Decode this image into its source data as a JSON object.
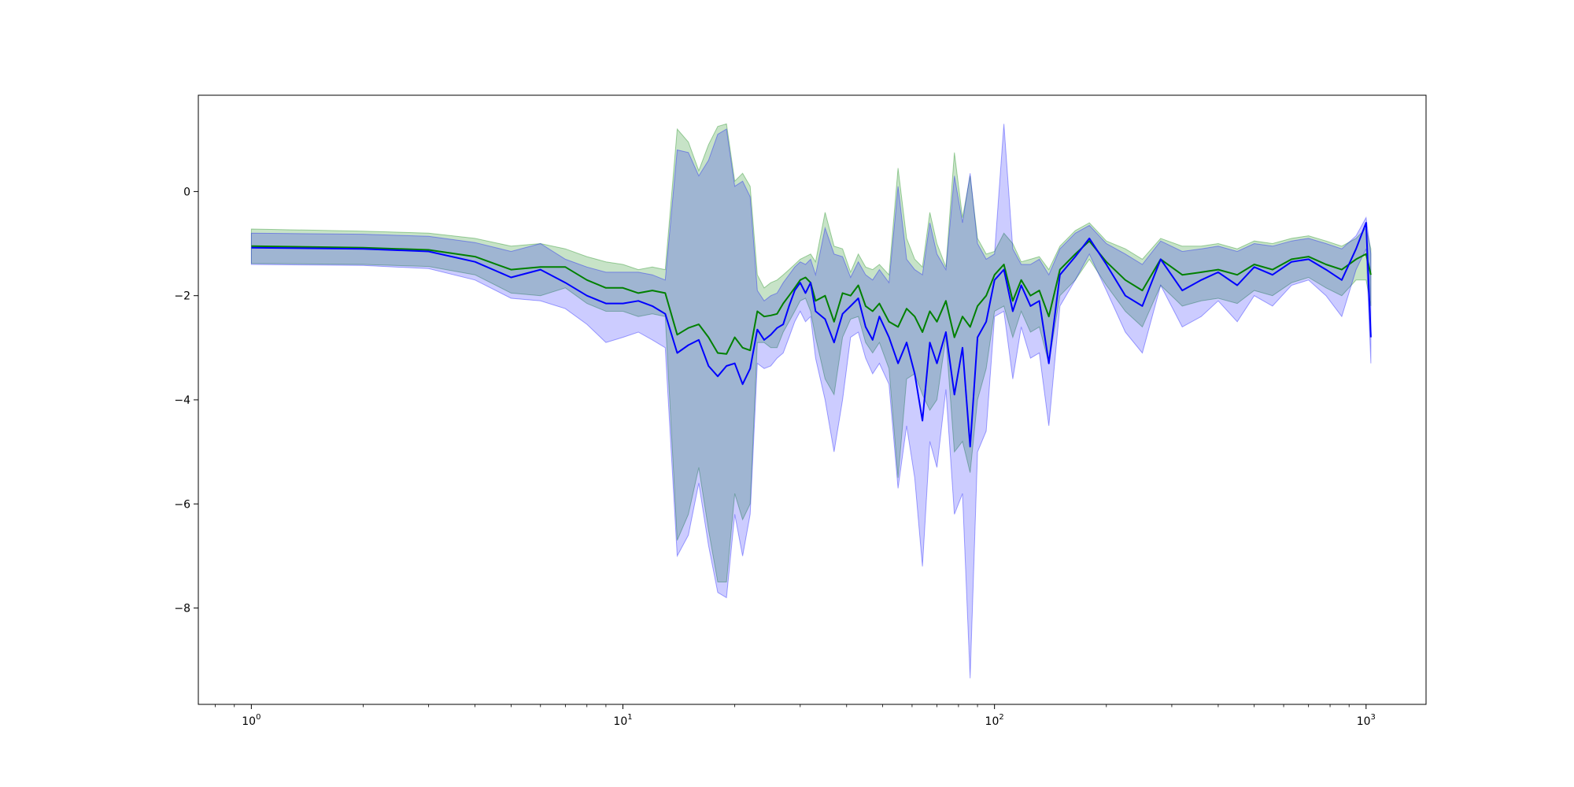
{
  "chart_data": {
    "type": "line",
    "title": "",
    "xlabel": "",
    "ylabel": "",
    "xscale": "log",
    "xlim": [
      0.72,
      1450
    ],
    "ylim": [
      -9.85,
      1.85
    ],
    "grid": false,
    "legend": "none",
    "x_ticks": [
      {
        "value": 1,
        "base": "10",
        "exp": "0"
      },
      {
        "value": 10,
        "base": "10",
        "exp": "1"
      },
      {
        "value": 100,
        "base": "10",
        "exp": "2"
      },
      {
        "value": 1000,
        "base": "10",
        "exp": "3"
      }
    ],
    "y_ticks": [
      {
        "value": 0,
        "label": "0"
      },
      {
        "value": -2,
        "label": "−2"
      },
      {
        "value": -4,
        "label": "−4"
      },
      {
        "value": -6,
        "label": "−6"
      },
      {
        "value": -8,
        "label": "−8"
      }
    ],
    "series": [
      {
        "color": "#008000",
        "band_color": "#008000",
        "band_opacity": 0.22,
        "x": [
          1,
          2,
          3,
          4,
          5,
          6,
          7,
          8,
          9,
          10,
          11,
          12,
          13,
          14,
          15,
          16,
          17,
          18,
          19,
          20,
          21,
          22,
          23,
          24,
          25,
          26,
          27,
          28,
          29,
          30,
          31,
          32,
          33,
          35,
          37,
          39,
          41,
          43,
          45,
          47,
          49,
          52,
          55,
          58,
          61,
          64,
          67,
          70,
          74,
          78,
          82,
          86,
          90,
          95,
          100,
          106,
          112,
          118,
          125,
          132,
          140,
          150,
          165,
          180,
          200,
          225,
          250,
          280,
          320,
          360,
          400,
          450,
          500,
          560,
          630,
          700,
          780,
          860,
          940,
          1000,
          1030
        ],
        "y": [
          -1.05,
          -1.08,
          -1.12,
          -1.25,
          -1.5,
          -1.45,
          -1.45,
          -1.7,
          -1.85,
          -1.85,
          -1.95,
          -1.9,
          -1.95,
          -2.75,
          -2.62,
          -2.55,
          -2.8,
          -3.1,
          -3.12,
          -2.8,
          -3.0,
          -3.05,
          -2.3,
          -2.4,
          -2.38,
          -2.35,
          -2.15,
          -2.0,
          -1.85,
          -1.7,
          -1.65,
          -1.75,
          -2.1,
          -2.0,
          -2.5,
          -1.95,
          -2.0,
          -1.8,
          -2.2,
          -2.3,
          -2.15,
          -2.5,
          -2.6,
          -2.25,
          -2.4,
          -2.7,
          -2.3,
          -2.5,
          -2.1,
          -2.8,
          -2.4,
          -2.6,
          -2.2,
          -2.0,
          -1.6,
          -1.4,
          -2.1,
          -1.7,
          -2.0,
          -1.9,
          -2.4,
          -1.5,
          -1.2,
          -0.95,
          -1.35,
          -1.7,
          -1.9,
          -1.3,
          -1.6,
          -1.55,
          -1.5,
          -1.6,
          -1.4,
          -1.5,
          -1.3,
          -1.25,
          -1.4,
          -1.5,
          -1.3,
          -1.2,
          -1.6
        ],
        "upper": [
          -0.72,
          -0.76,
          -0.8,
          -0.9,
          -1.05,
          -1.0,
          -1.1,
          -1.25,
          -1.35,
          -1.4,
          -1.5,
          -1.45,
          -1.5,
          1.2,
          0.95,
          0.4,
          0.9,
          1.25,
          1.3,
          0.2,
          0.35,
          0.1,
          -1.6,
          -1.85,
          -1.75,
          -1.7,
          -1.6,
          -1.5,
          -1.4,
          -1.3,
          -1.25,
          -1.2,
          -1.35,
          -0.4,
          -1.05,
          -1.1,
          -1.55,
          -1.2,
          -1.45,
          -1.5,
          -1.4,
          -1.6,
          0.45,
          -0.9,
          -1.3,
          -1.45,
          -0.4,
          -1.0,
          -1.45,
          0.75,
          -0.5,
          0.3,
          -0.9,
          -1.2,
          -1.15,
          -0.8,
          -1.0,
          -1.35,
          -1.3,
          -1.25,
          -1.5,
          -1.05,
          -0.75,
          -0.6,
          -0.95,
          -1.1,
          -1.3,
          -0.9,
          -1.05,
          -1.05,
          -1.0,
          -1.1,
          -0.95,
          -1.0,
          -0.9,
          -0.85,
          -0.95,
          -1.05,
          -0.9,
          -0.7,
          -1.1
        ],
        "lower": [
          -1.38,
          -1.4,
          -1.44,
          -1.6,
          -1.95,
          -2.0,
          -1.85,
          -2.15,
          -2.3,
          -2.3,
          -2.4,
          -2.35,
          -2.4,
          -6.7,
          -6.2,
          -5.3,
          -6.5,
          -7.5,
          -7.5,
          -5.8,
          -6.3,
          -6.0,
          -2.9,
          -2.9,
          -3.0,
          -3.0,
          -2.7,
          -2.5,
          -2.3,
          -2.1,
          -2.05,
          -2.3,
          -2.8,
          -3.6,
          -3.9,
          -2.8,
          -2.45,
          -2.4,
          -2.9,
          -3.1,
          -2.9,
          -3.4,
          -5.5,
          -3.6,
          -3.5,
          -3.9,
          -4.2,
          -4.0,
          -2.8,
          -5.0,
          -4.8,
          -5.4,
          -4.0,
          -3.4,
          -2.3,
          -2.2,
          -2.8,
          -2.3,
          -2.7,
          -2.6,
          -3.3,
          -2.0,
          -1.7,
          -1.3,
          -1.8,
          -2.3,
          -2.6,
          -1.8,
          -2.2,
          -2.1,
          -2.05,
          -2.15,
          -1.9,
          -2.0,
          -1.75,
          -1.65,
          -1.85,
          -2.0,
          -1.7,
          -1.7,
          -2.2
        ]
      },
      {
        "color": "#0000ff",
        "band_color": "#0000ff",
        "band_opacity": 0.2,
        "x": [
          1,
          2,
          3,
          4,
          5,
          6,
          7,
          8,
          9,
          10,
          11,
          12,
          13,
          14,
          15,
          16,
          17,
          18,
          19,
          20,
          21,
          22,
          23,
          24,
          25,
          26,
          27,
          28,
          29,
          30,
          31,
          32,
          33,
          35,
          37,
          39,
          41,
          43,
          45,
          47,
          49,
          52,
          55,
          58,
          61,
          64,
          67,
          70,
          74,
          78,
          82,
          86,
          90,
          95,
          100,
          106,
          112,
          118,
          125,
          132,
          140,
          150,
          165,
          180,
          200,
          225,
          250,
          280,
          320,
          360,
          400,
          450,
          500,
          560,
          630,
          700,
          780,
          860,
          940,
          1000,
          1030
        ],
        "y": [
          -1.08,
          -1.1,
          -1.15,
          -1.35,
          -1.65,
          -1.5,
          -1.75,
          -2.0,
          -2.15,
          -2.15,
          -2.1,
          -2.2,
          -2.35,
          -3.1,
          -2.95,
          -2.85,
          -3.35,
          -3.55,
          -3.35,
          -3.3,
          -3.7,
          -3.4,
          -2.65,
          -2.85,
          -2.75,
          -2.62,
          -2.55,
          -2.2,
          -1.9,
          -1.75,
          -1.95,
          -1.75,
          -2.3,
          -2.45,
          -2.9,
          -2.35,
          -2.2,
          -2.05,
          -2.6,
          -2.85,
          -2.4,
          -2.8,
          -3.3,
          -2.9,
          -3.5,
          -4.4,
          -2.9,
          -3.3,
          -2.7,
          -3.9,
          -3.0,
          -4.9,
          -2.8,
          -2.5,
          -1.7,
          -1.5,
          -2.3,
          -1.8,
          -2.2,
          -2.1,
          -3.3,
          -1.6,
          -1.25,
          -0.9,
          -1.4,
          -2.0,
          -2.2,
          -1.3,
          -1.9,
          -1.7,
          -1.55,
          -1.8,
          -1.45,
          -1.6,
          -1.35,
          -1.3,
          -1.5,
          -1.7,
          -1.1,
          -0.6,
          -2.8
        ],
        "upper": [
          -0.8,
          -0.82,
          -0.86,
          -0.98,
          -1.15,
          -1.0,
          -1.3,
          -1.45,
          -1.55,
          -1.55,
          -1.55,
          -1.6,
          -1.7,
          0.8,
          0.75,
          0.3,
          0.6,
          1.1,
          1.2,
          0.1,
          0.2,
          -0.1,
          -1.9,
          -2.1,
          -2.0,
          -1.95,
          -1.75,
          -1.6,
          -1.45,
          -1.35,
          -1.4,
          -1.3,
          -1.6,
          -0.7,
          -1.2,
          -1.25,
          -1.65,
          -1.35,
          -1.6,
          -1.7,
          -1.5,
          -1.75,
          0.1,
          -1.3,
          -1.5,
          -1.6,
          -0.6,
          -1.2,
          -1.5,
          0.3,
          -0.6,
          0.35,
          -1.0,
          -1.3,
          -1.2,
          1.3,
          -1.1,
          -1.4,
          -1.4,
          -1.3,
          -1.6,
          -1.1,
          -0.8,
          -0.65,
          -1.0,
          -1.2,
          -1.4,
          -0.95,
          -1.15,
          -1.1,
          -1.05,
          -1.15,
          -1.0,
          -1.05,
          -0.95,
          -0.9,
          -1.0,
          -1.1,
          -0.85,
          -0.5,
          -1.2
        ],
        "lower": [
          -1.4,
          -1.42,
          -1.48,
          -1.7,
          -2.05,
          -2.1,
          -2.25,
          -2.55,
          -2.9,
          -2.8,
          -2.7,
          -2.85,
          -3.0,
          -7.0,
          -6.6,
          -5.6,
          -6.8,
          -7.7,
          -7.8,
          -6.2,
          -7.0,
          -6.2,
          -3.3,
          -3.4,
          -3.35,
          -3.2,
          -3.1,
          -2.8,
          -2.5,
          -2.3,
          -2.5,
          -2.4,
          -3.2,
          -4.0,
          -5.0,
          -4.0,
          -2.8,
          -2.7,
          -3.2,
          -3.5,
          -3.3,
          -3.7,
          -5.7,
          -4.5,
          -5.5,
          -7.2,
          -4.8,
          -5.3,
          -3.8,
          -6.2,
          -5.8,
          -9.35,
          -5.0,
          -4.6,
          -2.4,
          -2.3,
          -3.6,
          -2.6,
          -3.2,
          -3.1,
          -4.5,
          -2.2,
          -1.7,
          -1.2,
          -1.9,
          -2.7,
          -3.1,
          -1.8,
          -2.6,
          -2.4,
          -2.1,
          -2.5,
          -2.0,
          -2.2,
          -1.8,
          -1.7,
          -2.0,
          -2.4,
          -1.5,
          -1.1,
          -3.3
        ]
      }
    ]
  }
}
